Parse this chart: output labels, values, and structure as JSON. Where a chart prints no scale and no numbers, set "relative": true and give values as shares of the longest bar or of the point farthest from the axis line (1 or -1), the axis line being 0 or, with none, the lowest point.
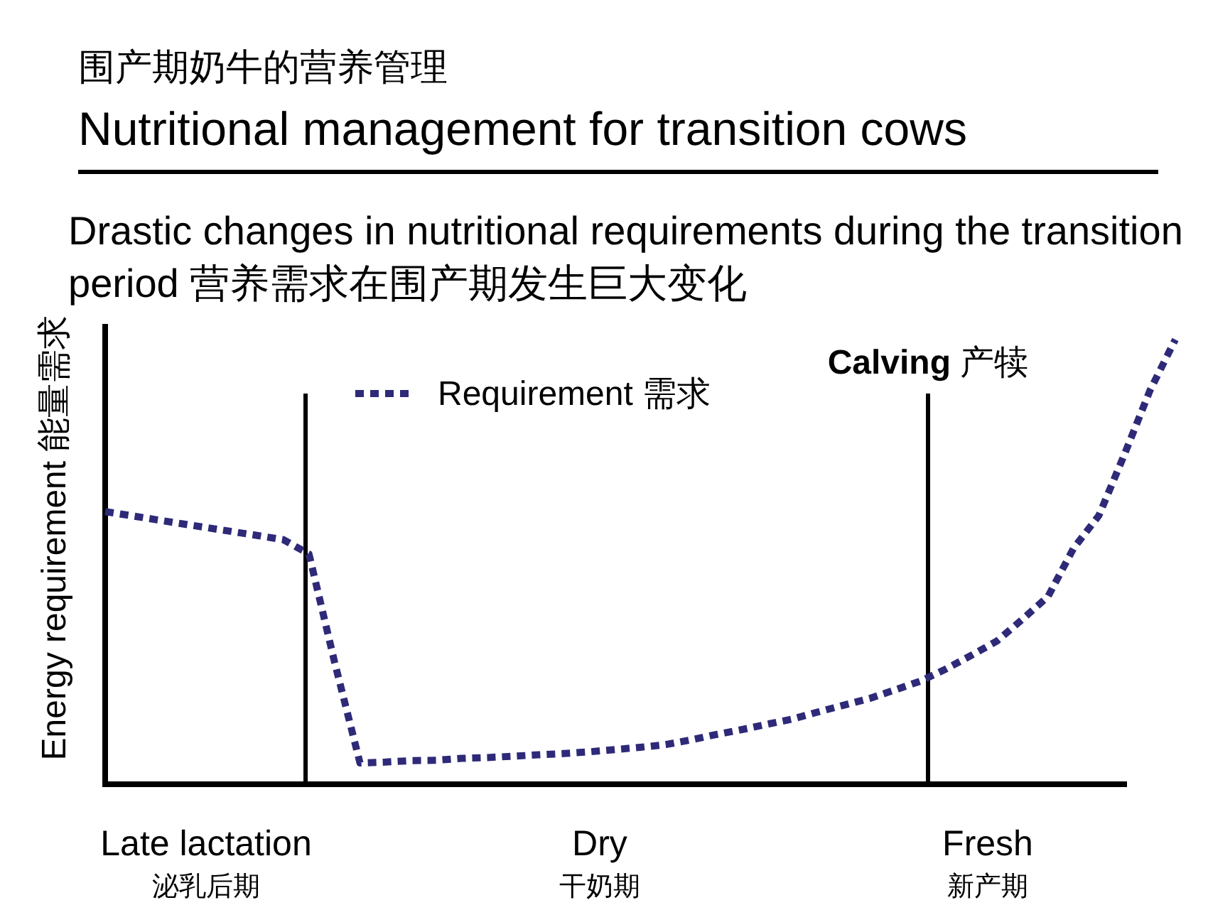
{
  "chart_data": {
    "type": "line",
    "title": "围产期奶牛的营养管理",
    "subtitle": "Nutritional management for transition cows",
    "annotations": [
      "Drastic changes in nutritional requirements during the transition period 营养需求在围产期发生巨大变化",
      "**Calving** 产犊",
      "Late lactation 泌乳后期",
      "Dry 干奶期",
      "Fresh 新产期"
    ],
    "ylabel": "Energy requirement 能量需求",
    "relative": true,
    "legend": "top left",
    "line_style": "dotted",
    "categories": [
      null,
      null,
      null,
      null,
      null,
      null,
      null,
      null,
      null,
      null,
      null,
      null,
      null,
      null,
      null,
      null,
      null,
      null,
      null,
      null,
      null,
      null,
      null,
      null,
      null,
      null,
      null,
      null,
      null,
      null,
      null,
      null,
      null,
      null,
      null,
      null,
      null,
      null,
      null,
      null,
      null,
      null,
      null
    ],
    "series": [
      {
        "name": "Requirement 需求",
        "color": "#2e2a78",
        "values": [
          0.613,
          0.604,
          0.595,
          0.586,
          0.577,
          0.568,
          0.559,
          0.55,
          0.518,
          0.275,
          0.048,
          0.05,
          0.053,
          0.054,
          0.058,
          0.06,
          0.063,
          0.066,
          0.069,
          0.073,
          0.078,
          0.083,
          0.089,
          0.1,
          0.112,
          0.123,
          0.135,
          0.147,
          0.163,
          0.178,
          0.193,
          0.212,
          0.232,
          0.259,
          0.29,
          0.322,
          0.371,
          0.422,
          0.53,
          0.604,
          0.741,
          0.885,
          1
        ]
      }
    ]
  }
}
